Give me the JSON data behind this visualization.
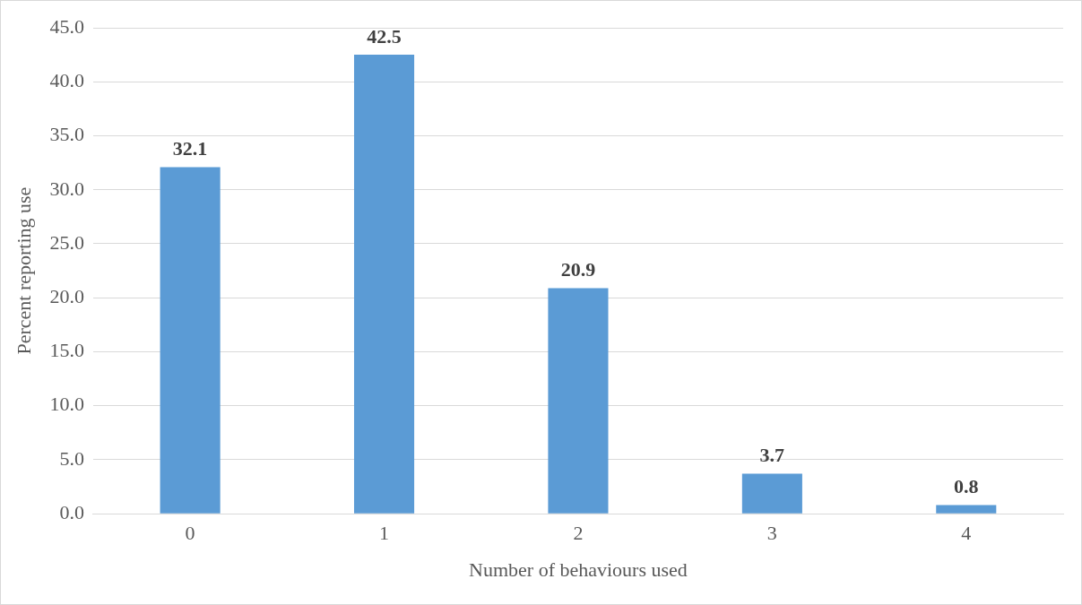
{
  "chart_data": {
    "type": "bar",
    "xlabel": "Number of behaviours used",
    "ylabel": "Percent reporting use",
    "categories": [
      "0",
      "1",
      "2",
      "3",
      "4"
    ],
    "values": [
      32.1,
      42.5,
      20.9,
      3.7,
      0.8
    ],
    "color": "#5b9bd5",
    "ylim": [
      0,
      45
    ],
    "yticks": [
      {
        "value": 0,
        "label": "0.0"
      },
      {
        "value": 5,
        "label": "5.0"
      },
      {
        "value": 10,
        "label": "10.0"
      },
      {
        "value": 15,
        "label": "15.0"
      },
      {
        "value": 20,
        "label": "20.0"
      },
      {
        "value": 25,
        "label": "25.0"
      },
      {
        "value": 30,
        "label": "30.0"
      },
      {
        "value": 35,
        "label": "35.0"
      },
      {
        "value": 40,
        "label": "40.0"
      },
      {
        "value": 45,
        "label": "45.0"
      }
    ],
    "grid": "y",
    "legend": false,
    "data_labels": true
  }
}
